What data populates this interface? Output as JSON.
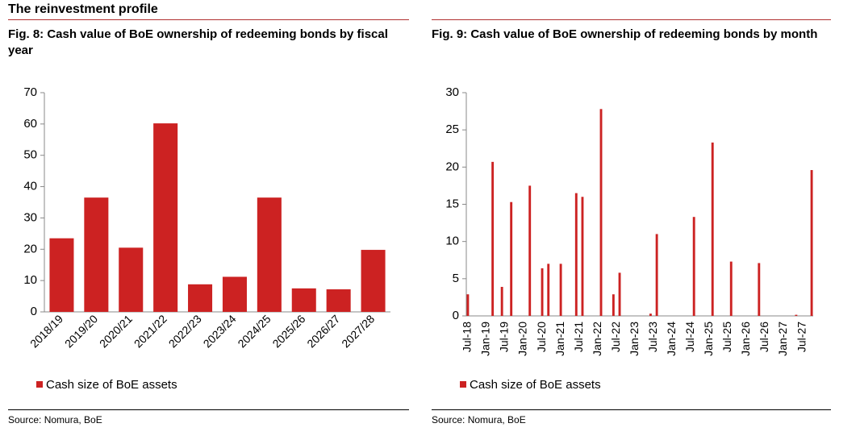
{
  "page_title": "The reinvestment profile",
  "chart_data": [
    {
      "type": "bar",
      "title": "Fig. 8: Cash value of BoE ownership of redeeming bonds by fiscal year",
      "categories": [
        "2018/19",
        "2019/20",
        "2020/21",
        "2021/22",
        "2022/23",
        "2023/24",
        "2024/25",
        "2025/26",
        "2026/27",
        "2027/28"
      ],
      "series": [
        {
          "name": "Cash size of BoE assets",
          "color": "#cc2222",
          "values": [
            23.5,
            36.5,
            20.5,
            60.2,
            8.8,
            11.2,
            36.5,
            7.5,
            7.2,
            19.8
          ]
        }
      ],
      "ylim": [
        0,
        70
      ],
      "yticks": [
        0,
        10,
        20,
        30,
        40,
        50,
        60,
        70
      ],
      "source": "Source: Nomura, BoE"
    },
    {
      "type": "bar",
      "title": "Fig. 9: Cash value of BoE ownership of redeeming bonds by month",
      "categories": [
        "Jul-18",
        null,
        null,
        null,
        null,
        null,
        "Jan-19",
        null,
        null,
        null,
        null,
        null,
        "Jul-19",
        null,
        null,
        null,
        null,
        null,
        "Jan-20",
        null,
        null,
        null,
        null,
        null,
        "Jul-20",
        null,
        null,
        null,
        null,
        null,
        "Jan-21",
        null,
        null,
        null,
        null,
        null,
        "Jul-21",
        null,
        null,
        null,
        null,
        null,
        "Jan-22",
        null,
        null,
        null,
        null,
        null,
        "Jul-22",
        null,
        null,
        null,
        null,
        null,
        "Jan-23",
        null,
        null,
        null,
        null,
        null,
        "Jul-23",
        null,
        null,
        null,
        null,
        null,
        "Jan-24",
        null,
        null,
        null,
        null,
        null,
        "Jul-24",
        null,
        null,
        null,
        null,
        null,
        "Jan-25",
        null,
        null,
        null,
        null,
        null,
        "Jul-25",
        null,
        null,
        null,
        null,
        null,
        "Jan-26",
        null,
        null,
        null,
        null,
        null,
        "Jul-26",
        null,
        null,
        null,
        null,
        null,
        "Jan-27",
        null,
        null,
        null,
        null,
        null,
        "Jul-27",
        null,
        null,
        null
      ],
      "series": [
        {
          "name": "Cash size of BoE assets",
          "color": "#cc2222",
          "values": [
            2.9,
            0,
            0,
            0,
            0,
            0,
            0,
            0,
            20.7,
            0,
            0,
            3.9,
            0,
            0,
            15.3,
            0,
            0,
            0,
            0,
            0,
            17.5,
            0,
            0,
            0,
            6.4,
            0,
            7.0,
            0,
            0,
            0,
            7.0,
            0,
            0,
            0,
            0,
            16.5,
            0,
            16.0,
            0,
            0,
            0,
            0,
            0,
            27.8,
            0,
            0,
            0,
            2.9,
            0,
            5.8,
            0,
            0,
            0,
            0,
            0,
            0,
            0,
            0,
            0,
            0.3,
            0,
            11.0,
            0,
            0,
            0,
            0,
            0,
            0,
            0,
            0,
            0,
            0,
            0,
            13.3,
            0,
            0,
            0,
            0,
            0,
            23.3,
            0,
            0,
            0,
            0,
            0,
            7.3,
            0,
            0,
            0,
            0,
            0,
            0,
            0,
            0,
            7.1,
            0,
            0,
            0,
            0,
            0,
            0,
            0,
            0,
            0,
            0,
            0,
            0.15,
            0,
            0,
            0,
            0,
            19.6
          ]
        }
      ],
      "ylim": [
        0,
        30
      ],
      "yticks": [
        0,
        5,
        10,
        15,
        20,
        25,
        30
      ],
      "source": "Source: Nomura, BoE"
    }
  ]
}
